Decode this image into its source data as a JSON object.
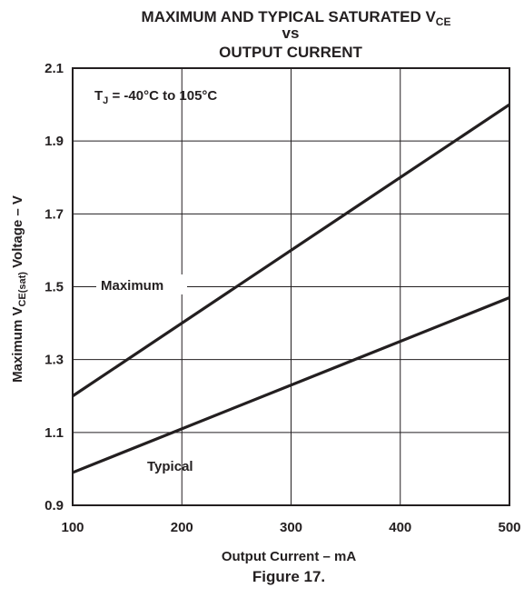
{
  "chart_data": {
    "type": "line",
    "title": {
      "line1_prefix": "MAXIMUM AND TYPICAL SATURATED V",
      "line1_sub": "CE",
      "line2": "vs",
      "line3": "OUTPUT CURRENT"
    },
    "xlabel": "Output Current – mA",
    "ylabel": {
      "prefix": "Maximum V",
      "sub": "CE(sat)",
      "suffix": " Voltage  – V"
    },
    "xlim": [
      100,
      500
    ],
    "ylim": [
      0.9,
      2.1
    ],
    "x_ticks": [
      "100",
      "200",
      "300",
      "400",
      "500"
    ],
    "y_ticks": [
      "0.9",
      "1.1",
      "1.3",
      "1.5",
      "1.7",
      "1.9",
      "2.1"
    ],
    "grid": true,
    "series": [
      {
        "name": "Maximum",
        "x": [
          100,
          500
        ],
        "y": [
          1.2,
          2.0
        ]
      },
      {
        "name": "Typical",
        "x": [
          100,
          500
        ],
        "y": [
          0.99,
          1.47
        ]
      }
    ],
    "annotations": {
      "condition_prefix": "T",
      "condition_sub": "J",
      "condition_suffix": " = -40°C to 105°C"
    }
  },
  "caption": "Figure 17."
}
